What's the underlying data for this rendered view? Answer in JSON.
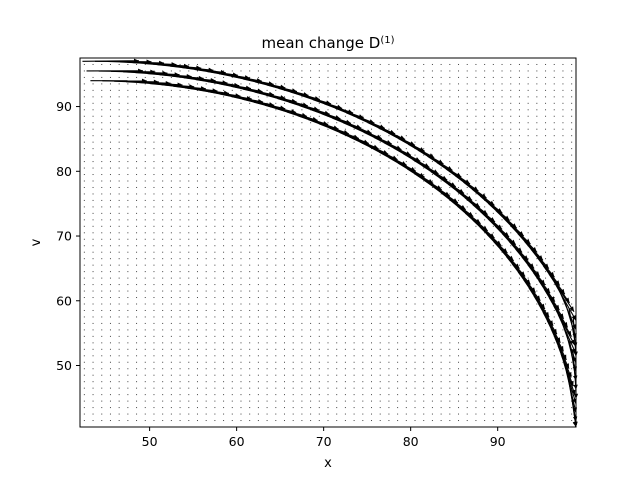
{
  "chart_data": {
    "type": "quiver",
    "title": "mean change D",
    "title_superscript": "(1)",
    "xlabel": "x",
    "ylabel": "v",
    "xlim": [
      42,
      99
    ],
    "ylim": [
      40.5,
      97.5
    ],
    "xticks": [
      50,
      60,
      70,
      80,
      90
    ],
    "yticks": [
      50,
      60,
      70,
      80,
      90
    ],
    "grid": false,
    "legend": "none",
    "arrow_color": "#000000",
    "background_field": {
      "x_range": [
        42,
        99
      ],
      "y_range": [
        40.5,
        97.5
      ],
      "spacing": 1,
      "arrow_length": 0
    },
    "flow_band": {
      "description_tracks": "concentric circular tracks around center",
      "center": [
        43,
        38
      ],
      "radii": [
        56,
        57.5,
        59
      ],
      "theta_start_deg": 3,
      "theta_end_deg": 95,
      "theta_step_deg": 1.4,
      "arrow_length_units": 6.5,
      "direction": "clockwise"
    }
  }
}
